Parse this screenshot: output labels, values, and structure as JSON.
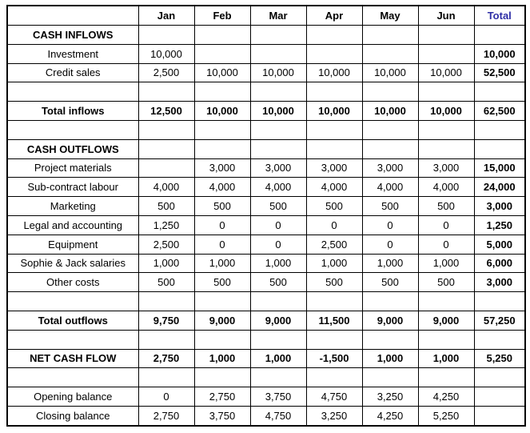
{
  "accent_color": "#2e2ea6",
  "table": {
    "columns": [
      "",
      "Jan",
      "Feb",
      "Mar",
      "Apr",
      "May",
      "Jun",
      "Total"
    ],
    "rows": [
      {
        "type": "section",
        "label": "CASH INFLOWS",
        "values": [
          "",
          "",
          "",
          "",
          "",
          ""
        ],
        "total": ""
      },
      {
        "type": "normal",
        "label": "Investment",
        "values": [
          "10,000",
          "",
          "",
          "",
          "",
          ""
        ],
        "total": "10,000"
      },
      {
        "type": "normal",
        "label": "Credit sales",
        "values": [
          "2,500",
          "10,000",
          "10,000",
          "10,000",
          "10,000",
          "10,000"
        ],
        "total": "52,500"
      },
      {
        "type": "blank",
        "label": "",
        "values": [
          "",
          "",
          "",
          "",
          "",
          ""
        ],
        "total": ""
      },
      {
        "type": "bold",
        "label": "Total inflows",
        "values": [
          "12,500",
          "10,000",
          "10,000",
          "10,000",
          "10,000",
          "10,000"
        ],
        "total": "62,500"
      },
      {
        "type": "blank",
        "label": "",
        "values": [
          "",
          "",
          "",
          "",
          "",
          ""
        ],
        "total": ""
      },
      {
        "type": "section",
        "label": "CASH OUTFLOWS",
        "values": [
          "",
          "",
          "",
          "",
          "",
          ""
        ],
        "total": ""
      },
      {
        "type": "normal",
        "label": "Project materials",
        "values": [
          "",
          "3,000",
          "3,000",
          "3,000",
          "3,000",
          "3,000"
        ],
        "total": "15,000"
      },
      {
        "type": "normal",
        "label": "Sub-contract labour",
        "values": [
          "4,000",
          "4,000",
          "4,000",
          "4,000",
          "4,000",
          "4,000"
        ],
        "total": "24,000"
      },
      {
        "type": "normal",
        "label": "Marketing",
        "values": [
          "500",
          "500",
          "500",
          "500",
          "500",
          "500"
        ],
        "total": "3,000"
      },
      {
        "type": "normal",
        "label": "Legal and accounting",
        "values": [
          "1,250",
          "0",
          "0",
          "0",
          "0",
          "0"
        ],
        "total": "1,250"
      },
      {
        "type": "normal",
        "label": "Equipment",
        "values": [
          "2,500",
          "0",
          "0",
          "2,500",
          "0",
          "0"
        ],
        "total": "5,000"
      },
      {
        "type": "normal",
        "label": "Sophie & Jack salaries",
        "values": [
          "1,000",
          "1,000",
          "1,000",
          "1,000",
          "1,000",
          "1,000"
        ],
        "total": "6,000"
      },
      {
        "type": "normal",
        "label": "Other costs",
        "values": [
          "500",
          "500",
          "500",
          "500",
          "500",
          "500"
        ],
        "total": "3,000"
      },
      {
        "type": "blank",
        "label": "",
        "values": [
          "",
          "",
          "",
          "",
          "",
          ""
        ],
        "total": ""
      },
      {
        "type": "bold",
        "label": "Total outflows",
        "values": [
          "9,750",
          "9,000",
          "9,000",
          "11,500",
          "9,000",
          "9,000"
        ],
        "total": "57,250"
      },
      {
        "type": "blank",
        "label": "",
        "values": [
          "",
          "",
          "",
          "",
          "",
          ""
        ],
        "total": ""
      },
      {
        "type": "bold",
        "label": "NET CASH FLOW",
        "values": [
          "2,750",
          "1,000",
          "1,000",
          "-1,500",
          "1,000",
          "1,000"
        ],
        "total": "5,250"
      },
      {
        "type": "blank",
        "label": "",
        "values": [
          "",
          "",
          "",
          "",
          "",
          ""
        ],
        "total": ""
      },
      {
        "type": "normal",
        "label": "Opening balance",
        "values": [
          "0",
          "2,750",
          "3,750",
          "4,750",
          "3,250",
          "4,250"
        ],
        "total": "",
        "total_merge": "down"
      },
      {
        "type": "normal",
        "label": "Closing balance",
        "values": [
          "2,750",
          "3,750",
          "4,750",
          "3,250",
          "4,250",
          "5,250"
        ],
        "total": "",
        "total_merge": "up"
      }
    ]
  }
}
